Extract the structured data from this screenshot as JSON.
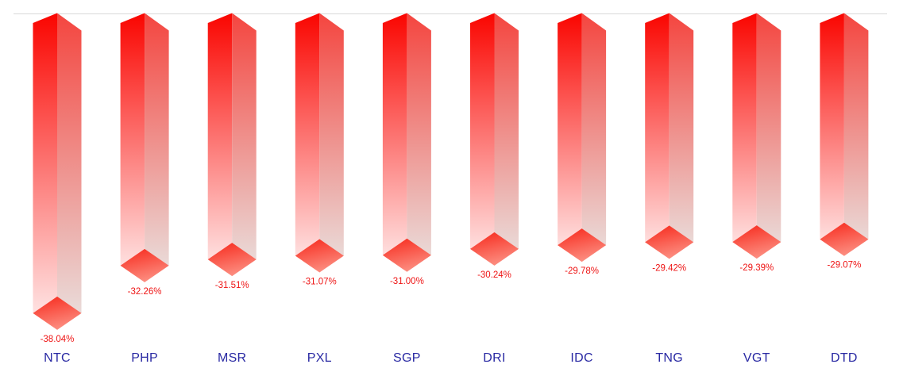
{
  "chart_data": {
    "type": "bar",
    "variant": "3d-columns-hanging-below-zero-line",
    "title": "",
    "xlabel": "",
    "ylabel": "",
    "legend": "none",
    "grid": "single horizontal baseline line at top (zero line)",
    "baseline_value": 0,
    "categories": [
      "NTC",
      "PHP",
      "MSR",
      "PXL",
      "SGP",
      "DRI",
      "IDC",
      "TNG",
      "VGT",
      "DTD"
    ],
    "values": [
      -38.04,
      -32.26,
      -31.51,
      -31.07,
      -31.0,
      -30.24,
      -29.78,
      -29.42,
      -29.39,
      -29.07
    ],
    "value_labels": [
      "-38.04%",
      "-32.26%",
      "-31.51%",
      "-31.07%",
      "-31.00%",
      "-30.24%",
      "-29.78%",
      "-29.42%",
      "-29.39%",
      "-29.07%"
    ],
    "ylim": [
      -40,
      0
    ],
    "colors": {
      "background": "#ffffff",
      "bar_top": "#fa0500",
      "bar_left_face_fade": "#ffeeee",
      "bar_right_face_top": "#f4453f",
      "bar_right_face_fade": "#e9e3e1",
      "bottom_cap_start": "#f7271a",
      "bottom_cap_end": "#fc8a7d",
      "value_label": "#ee1414",
      "category_label": "#2929a3",
      "baseline_line": "#d9d9d9"
    }
  }
}
